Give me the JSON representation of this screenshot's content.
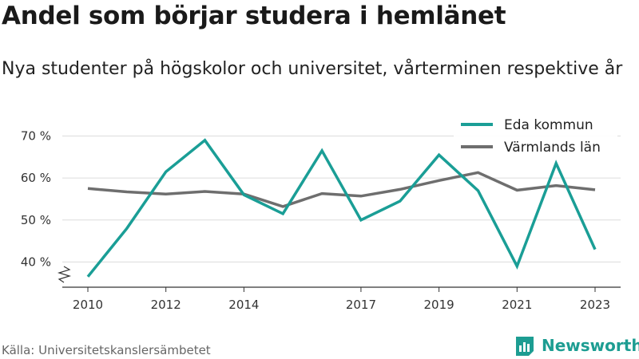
{
  "header": {
    "title": "Andel som börjar studera i hemlänet",
    "subtitle": "Nya studenter på högskolor och universitet, vårterminen respektive år"
  },
  "footer": {
    "source": "Källa: Universitetskanslersämbetet",
    "brand": "Newsworthy"
  },
  "chart_data": {
    "type": "line",
    "title": "Andel som börjar studera i hemlänet",
    "subtitle": "Nya studenter på högskolor och universitet, vårterminen respektive år",
    "xlabel": "",
    "ylabel": "",
    "x": [
      2010,
      2011,
      2012,
      2013,
      2014,
      2015,
      2016,
      2017,
      2018,
      2019,
      2020,
      2021,
      2022,
      2023
    ],
    "x_ticks": [
      "2010",
      "2012",
      "2014",
      "2017",
      "2019",
      "2021",
      "2023"
    ],
    "x_tick_values": [
      2010,
      2012,
      2014,
      2017,
      2019,
      2021,
      2023
    ],
    "y_ticks": [
      "40 %",
      "50 %",
      "60 %",
      "70 %"
    ],
    "y_tick_values": [
      40,
      50,
      60,
      70
    ],
    "xlim": [
      2010,
      2023
    ],
    "ylim": [
      34,
      72
    ],
    "grid": true,
    "legend_position": "top-right",
    "y_axis_break": true,
    "series": [
      {
        "name": "Eda kommun",
        "color": "#1a9e96",
        "values": [
          36.5,
          48,
          61.5,
          69,
          56,
          51.5,
          66.5,
          50,
          54.5,
          65.5,
          57,
          39,
          63.5,
          43
        ]
      },
      {
        "name": "Värmlands län",
        "color": "#6e6e6e",
        "values": [
          57.5,
          56.7,
          56.2,
          56.8,
          56.2,
          53.2,
          56.3,
          55.7,
          57.3,
          59.4,
          61.3,
          57.1,
          58.2,
          57.2
        ]
      }
    ]
  }
}
